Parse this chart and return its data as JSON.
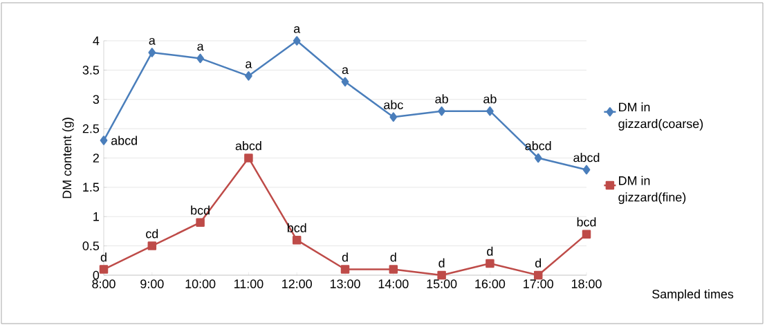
{
  "chart_data": {
    "type": "line",
    "xlabel": "Sampled times",
    "ylabel": "DM content (g)",
    "categories": [
      "8:00",
      "9:00",
      "10:00",
      "11:00",
      "12:00",
      "13:00",
      "14:00",
      "15:00",
      "16:00",
      "17:00",
      "18:00"
    ],
    "ylim": [
      0,
      4
    ],
    "yticks": [
      0,
      0.5,
      1,
      1.5,
      2,
      2.5,
      3,
      3.5,
      4
    ],
    "grid": "y",
    "legend": "right",
    "series": [
      {
        "name": "DM in gizzard(coarse)",
        "color": "#4a7ebb",
        "marker": "diamond",
        "values": [
          2.3,
          3.8,
          3.7,
          3.4,
          4.0,
          3.3,
          2.7,
          2.8,
          2.8,
          2.0,
          1.8
        ],
        "value_labels": [
          "abcd",
          "a",
          "a",
          "a",
          "a",
          "a",
          "abc",
          "ab",
          "ab",
          "abcd",
          "abcd"
        ]
      },
      {
        "name": "DM in gizzard(fine)",
        "color": "#be4b48",
        "marker": "square",
        "values": [
          0.1,
          0.5,
          0.9,
          2.0,
          0.6,
          0.1,
          0.1,
          0.0,
          0.2,
          0.0,
          0.7
        ],
        "value_labels": [
          "d",
          "cd",
          "bcd",
          "abcd",
          "bcd",
          "d",
          "d",
          "d",
          "d",
          "d",
          "bcd"
        ]
      }
    ]
  }
}
